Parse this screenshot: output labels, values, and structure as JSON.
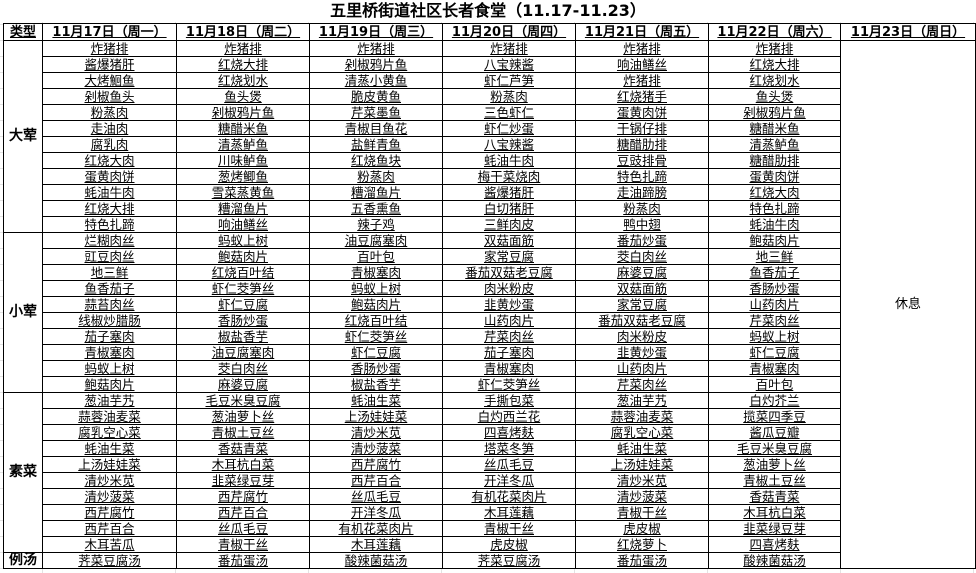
{
  "title": "五里桥街道社区长者食堂（11.17-11.23）",
  "type_header": "类型",
  "days": [
    "11月17日（周一）",
    "11月18日（周二）",
    "11月19日（周三）",
    "11月20日（周四）",
    "11月21日（周五）",
    "11月22日（周六）",
    "11月23日（周日）"
  ],
  "rest_label": "休息",
  "categories": [
    {
      "name": "大荤",
      "days": [
        [
          "炸猪排",
          "酱爆猪肝",
          "大烤鮰鱼",
          "剁椒鱼头",
          "粉蒸肉",
          "走油肉",
          "腐乳肉",
          "红烧大肉",
          "蛋黄肉饼",
          "蚝油牛肉",
          "红烧大排",
          "特色扎蹄"
        ],
        [
          "炸猪排",
          "红烧大排",
          "红烧划水",
          "鱼头煲",
          "剁椒鸦片鱼",
          "糖醋米鱼",
          "清蒸鲈鱼",
          "川味鲈鱼",
          "葱烤鲫鱼",
          "雪菜蒸黄鱼",
          "糟溜鱼片",
          "响油鳝丝"
        ],
        [
          "炸猪排",
          "剁椒鸦片鱼",
          "清蒸小黄鱼",
          "脆皮黄鱼",
          "芹菜墨鱼",
          "青椒目鱼花",
          "盐鲜青鱼",
          "红烧鱼块",
          "粉蒸肉",
          "糟溜鱼片",
          "五香熏鱼",
          "辣子鸡"
        ],
        [
          "炸猪排",
          "八宝辣酱",
          "虾仁芦笋",
          "粉蒸肉",
          "三色虾仁",
          "虾仁炒蛋",
          "八宝辣酱",
          "蚝油牛肉",
          "梅干菜烧肉",
          "酱爆猪肝",
          "白切猪肝",
          "三鲜肉皮"
        ],
        [
          "炸猪排",
          "响油鳝丝",
          "炸猪排",
          "红烧猪手",
          "蛋黄肉饼",
          "干锅仔排",
          "糖醋肋排",
          "豆豉排骨",
          "特色扎蹄",
          "走油蹄膀",
          "粉蒸肉",
          "鸭中翅"
        ],
        [
          "炸猪排",
          "红烧大排",
          "红烧划水",
          "鱼头煲",
          "剁椒鸦片鱼",
          "糖醋米鱼",
          "清蒸鲈鱼",
          "糖醋肋排",
          "蛋黄肉饼",
          "红烧大肉",
          "特色扎蹄",
          "蚝油牛肉"
        ]
      ]
    },
    {
      "name": "小荤",
      "days": [
        [
          "烂糊肉丝",
          "豇豆肉丝",
          "地三鲜",
          "鱼香茄子",
          "蒜苔肉丝",
          "线椒炒腊肠",
          "茄子塞肉",
          "青椒塞肉",
          "蚂蚁上树",
          "鲍菇肉片"
        ],
        [
          "蚂蚁上树",
          "鲍菇肉片",
          "红烧百叶结",
          "虾仁茭笋丝",
          "虾仁豆腐",
          "香肠炒蛋",
          "椒盐香芋",
          "油豆腐塞肉",
          "茭白肉丝",
          "麻婆豆腐"
        ],
        [
          "油豆腐塞肉",
          "百叶包",
          "青椒塞肉",
          "蚂蚁上树",
          "鲍菇肉片",
          "红烧百叶结",
          "虾仁茭笋丝",
          "虾仁豆腐",
          "香肠炒蛋",
          "椒盐香芋"
        ],
        [
          "双菇面筋",
          "家常豆腐",
          "番茄双菇老豆腐",
          "肉米粉皮",
          "韭黄炒蛋",
          "山药肉片",
          "芹菜肉丝",
          "茄子塞肉",
          "青椒塞肉",
          "虾仁茭笋丝"
        ],
        [
          "番茄炒蛋",
          "茭白肉丝",
          "麻婆豆腐",
          "双菇面筋",
          "家常豆腐",
          "番茄双菇老豆腐",
          "肉米粉皮",
          "韭黄炒蛋",
          "山药肉片",
          "芹菜肉丝"
        ],
        [
          "鲍菇肉片",
          "地三鲜",
          "鱼香茄子",
          "香肠炒蛋",
          "山药肉片",
          "芹菜肉丝",
          "蚂蚁上树",
          "虾仁豆腐",
          "青椒塞肉",
          "百叶包"
        ]
      ]
    },
    {
      "name": "素菜",
      "days": [
        [
          "葱油芋艿",
          "蒜蓉油麦菜",
          "腐乳空心菜",
          "蚝油生菜",
          "上汤娃娃菜",
          "清炒米苋",
          "清炒菠菜",
          "西芹腐竹",
          "西芹百合",
          "木耳苦瓜"
        ],
        [
          "毛豆米臭豆腐",
          "葱油萝卜丝",
          "青椒土豆丝",
          "香菇青菜",
          "木耳杭白菜",
          "韭菜绿豆芽",
          "西芹腐竹",
          "西芹百合",
          "丝瓜毛豆",
          "青椒干丝"
        ],
        [
          "蚝油生菜",
          "上汤娃娃菜",
          "清炒米苋",
          "清炒菠菜",
          "西芹腐竹",
          "西芹百合",
          "丝瓜毛豆",
          "开洋冬瓜",
          "有机花菜肉片",
          "木耳莲藕"
        ],
        [
          "手撕包菜",
          "白灼西兰花",
          "四喜烤麸",
          "塔菜冬笋",
          "丝瓜毛豆",
          "开洋冬瓜",
          "有机花菜肉片",
          "木耳莲藕",
          "青椒干丝",
          "虎皮椒"
        ],
        [
          "葱油芋艿",
          "蒜蓉油麦菜",
          "腐乳空心菜",
          "蚝油生菜",
          "上汤娃娃菜",
          "清炒米苋",
          "清炒菠菜",
          "青椒干丝",
          "虎皮椒",
          "红烧萝卜"
        ],
        [
          "白灼芥兰",
          "揽菜四季豆",
          "酱瓜豆瓣",
          "毛豆米臭豆腐",
          "葱油萝卜丝",
          "青椒土豆丝",
          "香菇青菜",
          "木耳杭白菜",
          "韭菜绿豆芽",
          "四喜烤麸"
        ]
      ]
    },
    {
      "name": "例汤",
      "days": [
        [
          "荠菜豆腐汤"
        ],
        [
          "番茄蛋汤"
        ],
        [
          "酸辣菌菇汤"
        ],
        [
          "荠菜豆腐汤"
        ],
        [
          "番茄蛋汤"
        ],
        [
          "酸辣菌菇汤"
        ]
      ]
    }
  ]
}
